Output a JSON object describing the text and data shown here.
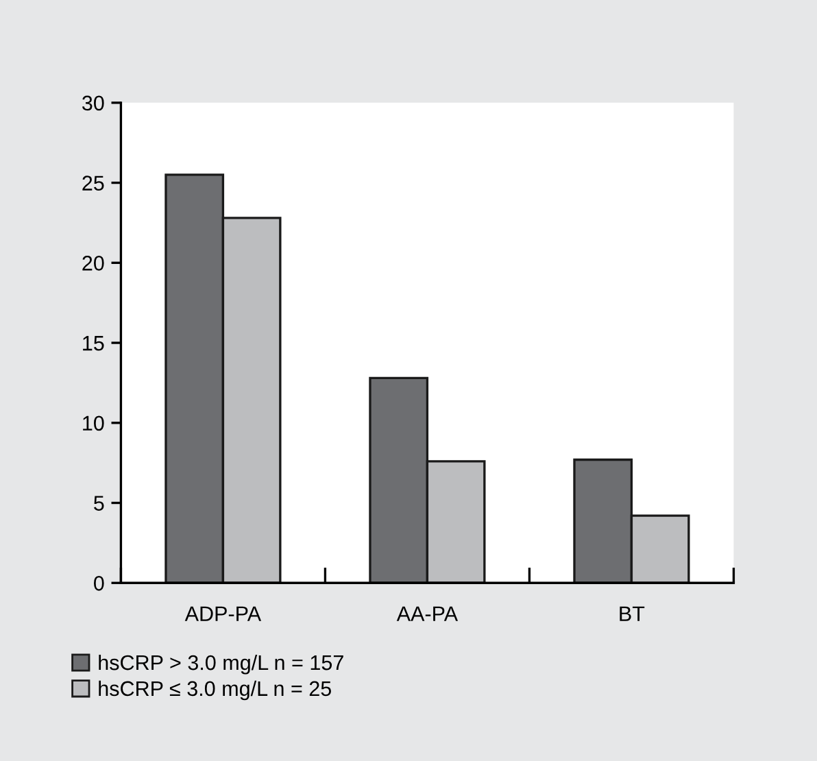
{
  "chart_data": {
    "type": "bar",
    "categories": [
      "ADP-PA",
      "AA-PA",
      "BT"
    ],
    "series": [
      {
        "name": "hsCRP > 3.0 mg/L n = 157",
        "color": "#6d6e71",
        "values": [
          25.5,
          12.8,
          7.7
        ]
      },
      {
        "name": "hsCRP ≤ 3.0 mg/L n = 25",
        "color": "#bcbdbf",
        "values": [
          22.8,
          7.6,
          4.2
        ]
      }
    ],
    "ylim": [
      0,
      30
    ],
    "yticks": [
      0,
      5,
      10,
      15,
      20,
      25,
      30
    ],
    "grid": false,
    "legend": "bottom left"
  }
}
